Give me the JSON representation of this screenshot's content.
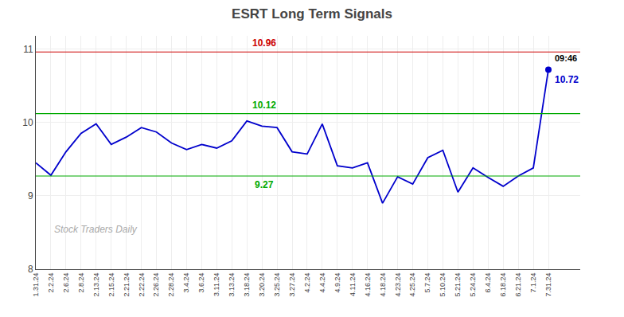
{
  "chart_data": {
    "type": "line",
    "title": "ESRT Long Term Signals",
    "categories": [
      "1.31.24",
      "2.2.24",
      "2.6.24",
      "2.8.24",
      "2.13.24",
      "2.15.24",
      "2.21.24",
      "2.22.24",
      "2.26.24",
      "2.28.24",
      "3.4.24",
      "3.6.24",
      "3.11.24",
      "3.13.24",
      "3.18.24",
      "3.20.24",
      "3.25.24",
      "3.27.24",
      "4.2.24",
      "4.4.24",
      "4.9.24",
      "4.11.24",
      "4.16.24",
      "4.18.24",
      "4.23.24",
      "4.25.24",
      "5.7.24",
      "5.10.24",
      "5.21.24",
      "5.24.24",
      "6.4.24",
      "6.18.24",
      "6.21.24",
      "7.1.24",
      "7.31.24"
    ],
    "values": [
      9.45,
      9.28,
      9.6,
      9.85,
      9.98,
      9.7,
      9.8,
      9.93,
      9.87,
      9.72,
      9.63,
      9.7,
      9.65,
      9.75,
      10.02,
      9.95,
      9.93,
      9.6,
      9.57,
      9.98,
      9.41,
      9.38,
      9.45,
      8.9,
      9.26,
      9.16,
      9.52,
      9.62,
      9.05,
      9.38,
      9.25,
      9.13,
      9.27,
      9.38,
      10.72
    ],
    "color": "#0000cc",
    "hlines": [
      {
        "value": 10.96,
        "color": "#cc0000"
      },
      {
        "value": 10.12,
        "color": "#00aa00"
      },
      {
        "value": 9.27,
        "color": "#00aa00"
      }
    ],
    "annotations": [
      "09:46",
      "10.72"
    ],
    "watermark": "Stock Traders Daily",
    "ylim": [
      8.0,
      11.18
    ],
    "yticks": [
      8,
      9,
      10,
      11
    ],
    "grid": true
  }
}
